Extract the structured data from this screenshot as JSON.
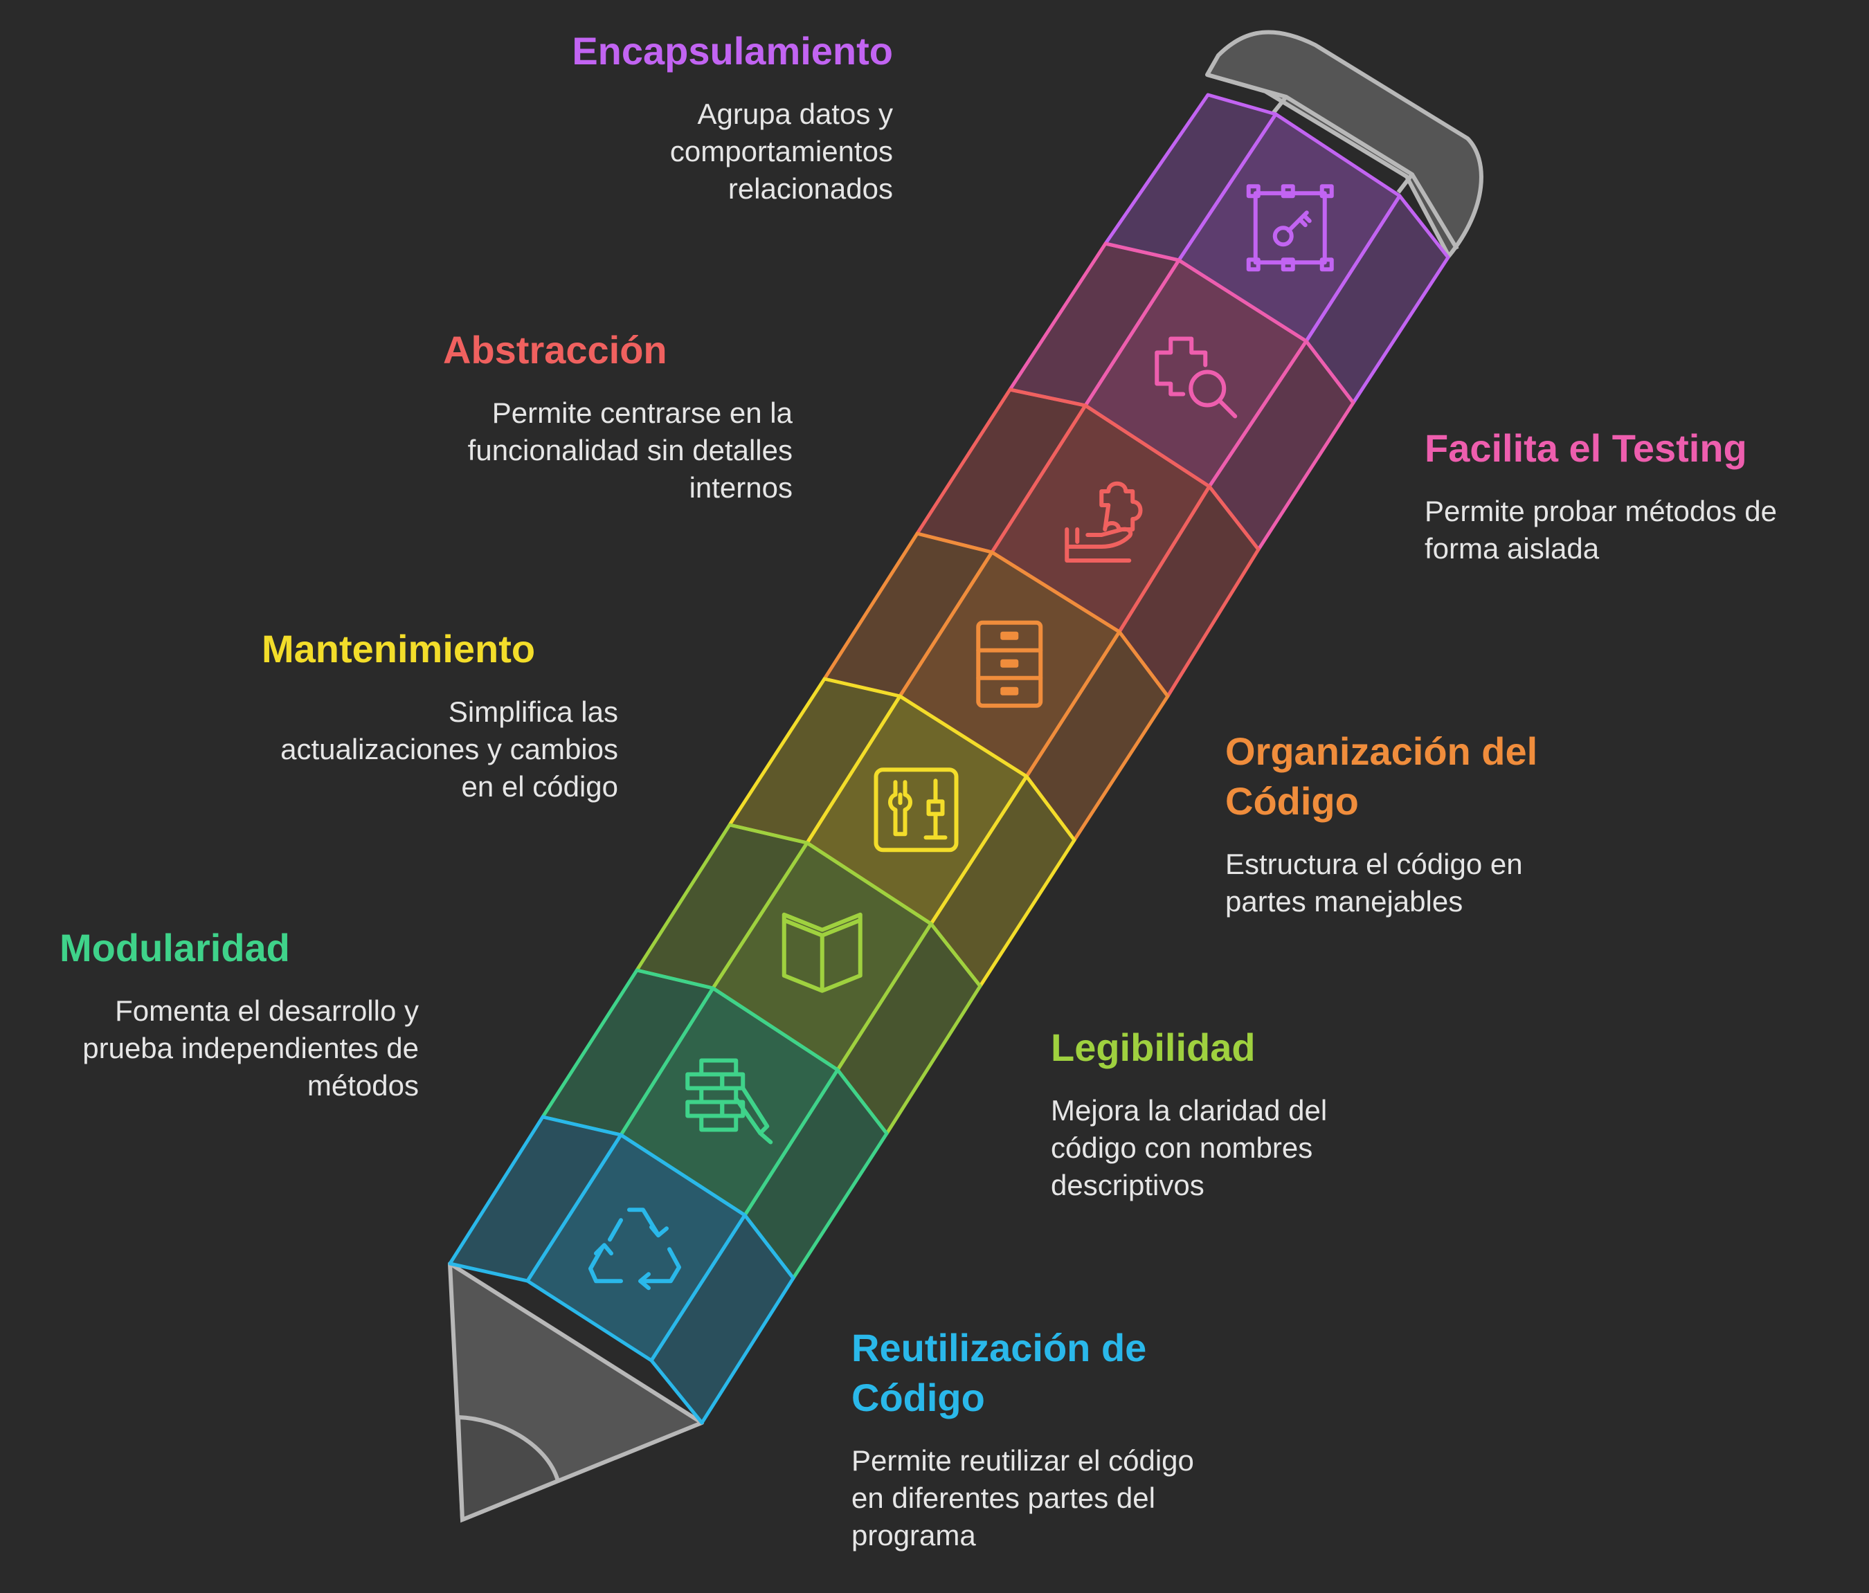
{
  "colors": {
    "background": "#2a2a2a",
    "pencil_gray": "#555555",
    "outline_gray": "#b8b8b8"
  },
  "segments": [
    {
      "key": "encapsulamiento",
      "title": "Encapsulamiento",
      "desc": [
        "Agrupa datos y",
        "comportamientos",
        "relacionados"
      ],
      "color": "#c264f2",
      "icon": "key-frame-icon"
    },
    {
      "key": "testing",
      "title": "Facilita el Testing",
      "desc": [
        "Permite probar métodos de",
        "forma aislada"
      ],
      "color": "#ee5eae",
      "icon": "puzzle-search-icon"
    },
    {
      "key": "abstraccion",
      "title": "Abstracción",
      "desc": [
        "Permite centrarse en la",
        "funcionalidad sin detalles",
        "internos"
      ],
      "color": "#f0615f",
      "icon": "hand-puzzle-icon"
    },
    {
      "key": "organizacion",
      "title_lines": [
        "Organización del",
        "Código"
      ],
      "desc": [
        "Estructura el código en",
        "partes manejables"
      ],
      "color": "#f08d3c",
      "icon": "file-cabinet-icon"
    },
    {
      "key": "mantenimiento",
      "title": "Mantenimiento",
      "desc": [
        "Simplifica las",
        "actualizaciones y cambios",
        "en el código"
      ],
      "color": "#f3dd2a",
      "icon": "tools-panel-icon"
    },
    {
      "key": "legibilidad",
      "title": "Legibilidad",
      "desc": [
        "Mejora la claridad del",
        "código con nombres",
        "descriptivos"
      ],
      "color": "#9fd13f",
      "icon": "open-book-icon"
    },
    {
      "key": "modularidad",
      "title": "Modularidad",
      "desc": [
        "Fomenta el desarrollo y",
        "prueba independientes de",
        "métodos"
      ],
      "color": "#3fd38a",
      "icon": "bricks-trowel-icon"
    },
    {
      "key": "reutilizacion",
      "title_lines": [
        "Reutilización de",
        "Código"
      ],
      "desc": [
        "Permite reutilizar el código",
        "en diferentes partes del",
        "programa"
      ],
      "color": "#2ab8ea",
      "icon": "recycle-icon"
    }
  ]
}
